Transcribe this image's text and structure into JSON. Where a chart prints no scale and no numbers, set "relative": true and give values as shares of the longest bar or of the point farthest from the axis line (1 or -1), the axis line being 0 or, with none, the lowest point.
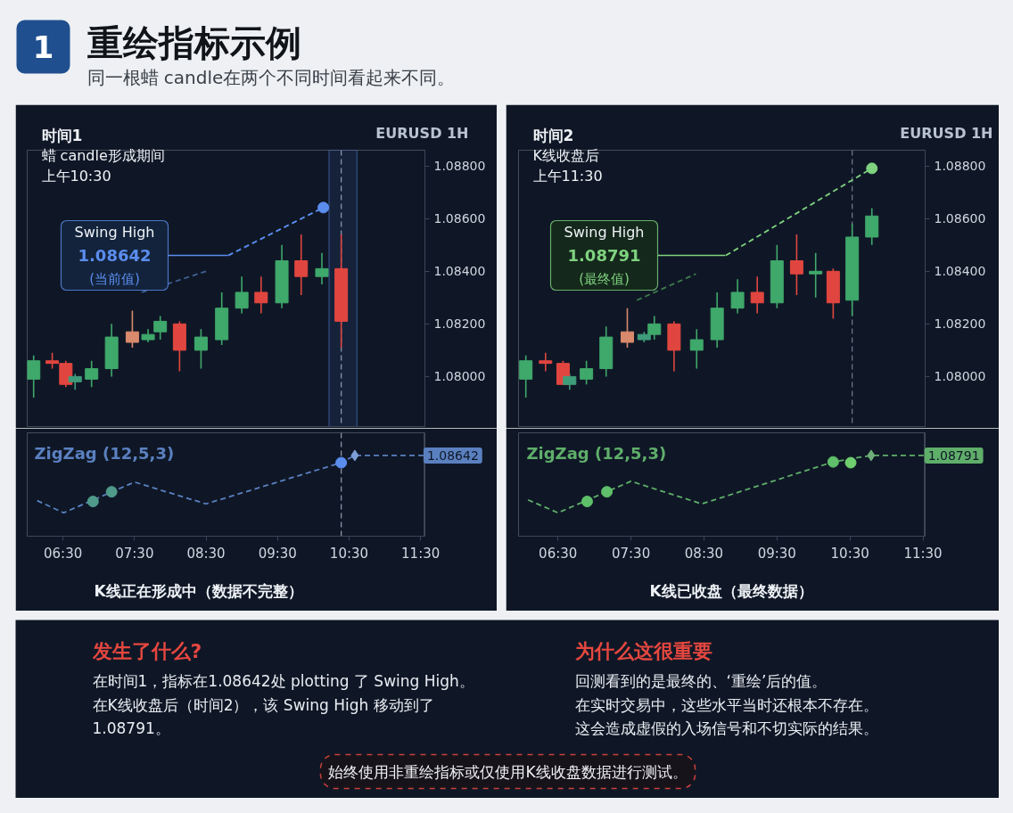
{
  "chart_data": [
    {
      "type": "other",
      "title": "重绘指标示例",
      "subtitle": "同一根蜡 candle在两个不同时间看起来不同。",
      "annotations": [
        "1"
      ]
    },
    {
      "type": "candlestick",
      "title": "时间1",
      "subtitle": "蜡 candle形成期间",
      "annotations": [
        "上午10:30",
        "EURUSD 1H",
        "Swing High\n1.08642\n(当前值)"
      ],
      "x": [
        6.09,
        6.35,
        6.54,
        6.67,
        6.9,
        7.18,
        7.47,
        7.69,
        7.86,
        8.13,
        8.43,
        8.72,
        9.0,
        9.27,
        9.56,
        9.83,
        10.12,
        10.39
      ],
      "ohlc": [
        [
          1.0799,
          1.0808,
          1.0792,
          1.0806
        ],
        [
          1.0806,
          1.0809,
          1.0803,
          1.0805
        ],
        [
          1.0805,
          1.0806,
          1.0796,
          1.0797
        ],
        [
          1.0798,
          1.0801,
          1.0795,
          1.08
        ],
        [
          1.0799,
          1.0806,
          1.0796,
          1.0803
        ],
        [
          1.0803,
          1.082,
          1.08,
          1.0815
        ],
        [
          1.0817,
          1.0825,
          1.0811,
          1.0813
        ],
        [
          1.0814,
          1.0818,
          1.0813,
          1.0816
        ],
        [
          1.0817,
          1.0823,
          1.0814,
          1.0821
        ],
        [
          1.082,
          1.0821,
          1.0802,
          1.081
        ],
        [
          1.081,
          1.0818,
          1.0803,
          1.0815
        ],
        [
          1.0814,
          1.0832,
          1.0812,
          1.0826
        ],
        [
          1.0826,
          1.0838,
          1.0824,
          1.0832
        ],
        [
          1.0832,
          1.0838,
          1.0824,
          1.0828
        ],
        [
          1.0828,
          1.085,
          1.0826,
          1.0844
        ],
        [
          1.0844,
          1.0854,
          1.0831,
          1.0838
        ],
        [
          1.0838,
          1.0847,
          1.0835,
          1.0841
        ],
        [
          1.0841,
          1.0854,
          1.0811,
          1.0821
        ]
      ],
      "colors": [
        "#3fa86b",
        "#e0463f",
        "#e0463f",
        "#3f9c7a",
        "#3fa86b",
        "#3fa86b",
        "#d98a6c",
        "#3fa86b",
        "#3fa86b",
        "#e0463f",
        "#3fa86b",
        "#3fa86b",
        "#3fa86b",
        "#e0463f",
        "#3fa86b",
        "#e0463f",
        "#3fa86b",
        "#e0463f"
      ],
      "series": [
        {
          "type": "scatter",
          "x": [
            10.14
          ],
          "values": [
            1.08642
          ],
          "color": "#5b8def",
          "marker": "circle"
        },
        {
          "type": "line",
          "x": [
            8.81,
            10.14
          ],
          "values": [
            1.0846,
            1.08642
          ],
          "color": "#5b8def",
          "line_style": "dashed"
        },
        {
          "type": "line",
          "x": [
            7.6,
            8.5
          ],
          "values": [
            1.0832,
            1.084
          ],
          "color": "#3e5f94",
          "line_style": "dashed"
        }
      ],
      "xlim": [
        6.0,
        11.56
      ],
      "ylim": [
        1.0781,
        1.0886
      ],
      "yticks": [
        {
          "value": 1.08,
          "label": "1.08000"
        },
        {
          "value": 1.082,
          "label": "1.08200"
        },
        {
          "value": 1.084,
          "label": "1.08400"
        },
        {
          "value": 1.086,
          "label": "1.08600"
        },
        {
          "value": 1.088,
          "label": "1.08800"
        }
      ],
      "tick_labels": "y",
      "ref_lines": [
        {
          "axis": "x",
          "value": 10.39,
          "color": "#8a94a6",
          "line_style": "dashed"
        }
      ],
      "bands": [
        {
          "axis": "x",
          "from": 10.22,
          "to": 10.61,
          "color": "#5b8def"
        }
      ]
    },
    {
      "type": "line",
      "title": "ZigZag (12,5,3)",
      "relative": true,
      "series": [
        {
          "x": [
            6.14,
            6.51,
            7.5,
            8.5,
            10.39,
            10.58,
            11.54
          ],
          "values": [
            0.44,
            0.29,
            0.67,
            0.4,
            0.91,
            1.0,
            1.0
          ],
          "color": "#5b80c0",
          "line_style": "dashed"
        },
        {
          "type": "scatter",
          "x": [
            6.92,
            7.18
          ],
          "values": [
            0.43,
            0.55
          ],
          "color": "#4f9a8a",
          "marker": "circle"
        },
        {
          "type": "scatter",
          "x": [
            10.39
          ],
          "values": [
            0.91
          ],
          "color": "#5b8def",
          "marker": "circle"
        },
        {
          "type": "scatter",
          "x": [
            10.58
          ],
          "values": [
            1.0
          ],
          "color": "#7d9fd6",
          "marker": "diamond"
        }
      ],
      "xlim": [
        6.0,
        11.56
      ],
      "xticks": [
        {
          "value": 6.5,
          "label": "06:30"
        },
        {
          "value": 7.5,
          "label": "07:30"
        },
        {
          "value": 8.5,
          "label": "08:30"
        },
        {
          "value": 9.5,
          "label": "09:30"
        },
        {
          "value": 10.5,
          "label": "10:30"
        },
        {
          "value": 11.5,
          "label": "11:30"
        }
      ],
      "tick_labels": "x",
      "ref_lines": [
        {
          "axis": "x",
          "value": 10.39,
          "color": "#8a94a6",
          "line_style": "dashed"
        },
        {
          "axis": "x",
          "value": 11.55,
          "color": "#3a4556",
          "line_style": "solid"
        }
      ],
      "annotations": [
        "K线正在形成中（数据不完整）",
        "1.08642"
      ]
    },
    {
      "type": "candlestick",
      "title": "时间2",
      "subtitle": "K线收盘后",
      "annotations": [
        "上午11:30",
        "EURUSD 1H",
        "Swing High\n1.08791\n(最终值)"
      ],
      "x": [
        6.06,
        6.33,
        6.57,
        6.66,
        6.89,
        7.16,
        7.45,
        7.68,
        7.82,
        8.09,
        8.4,
        8.68,
        8.96,
        9.23,
        9.5,
        9.77,
        10.03,
        10.27,
        10.53,
        10.8
      ],
      "ohlc": [
        [
          1.0799,
          1.0808,
          1.0792,
          1.0806
        ],
        [
          1.0806,
          1.0809,
          1.0802,
          1.0805
        ],
        [
          1.0805,
          1.0806,
          1.0797,
          1.0797
        ],
        [
          1.0797,
          1.0801,
          1.0795,
          1.08
        ],
        [
          1.0799,
          1.0806,
          1.0797,
          1.0803
        ],
        [
          1.0803,
          1.0819,
          1.08,
          1.0815
        ],
        [
          1.0817,
          1.0826,
          1.0811,
          1.0813
        ],
        [
          1.0814,
          1.0817,
          1.0813,
          1.0816
        ],
        [
          1.0816,
          1.0823,
          1.0814,
          1.082
        ],
        [
          1.082,
          1.0821,
          1.0802,
          1.081
        ],
        [
          1.081,
          1.0818,
          1.0803,
          1.0814
        ],
        [
          1.0814,
          1.0832,
          1.0811,
          1.0826
        ],
        [
          1.0826,
          1.0837,
          1.0824,
          1.0832
        ],
        [
          1.0832,
          1.0838,
          1.0824,
          1.0828
        ],
        [
          1.0828,
          1.085,
          1.0826,
          1.0844
        ],
        [
          1.0844,
          1.0854,
          1.0831,
          1.0839
        ],
        [
          1.0839,
          1.0847,
          1.083,
          1.084
        ],
        [
          1.084,
          1.0841,
          1.0822,
          1.0828
        ],
        [
          1.0829,
          1.0858,
          1.0823,
          1.0853
        ],
        [
          1.0853,
          1.0864,
          1.085,
          1.0861
        ]
      ],
      "colors": [
        "#3fa86b",
        "#e0463f",
        "#e0463f",
        "#3f9c7a",
        "#3fa86b",
        "#3fa86b",
        "#d98a6c",
        "#3f9c7a",
        "#3fa86b",
        "#e0463f",
        "#3fa86b",
        "#3fa86b",
        "#3fa86b",
        "#e0463f",
        "#3fa86b",
        "#e0463f",
        "#3fa86b",
        "#e0463f",
        "#3fa86b",
        "#3fa86b"
      ],
      "series": [
        {
          "type": "scatter",
          "x": [
            10.8
          ],
          "values": [
            1.08791
          ],
          "color": "#7fd27f",
          "marker": "circle"
        },
        {
          "type": "line",
          "x": [
            8.8,
            10.8
          ],
          "values": [
            1.0846,
            1.08791
          ],
          "color": "#7fd27f",
          "line_style": "dashed"
        },
        {
          "type": "line",
          "x": [
            7.58,
            8.39
          ],
          "values": [
            1.0829,
            1.0839
          ],
          "color": "#3f7a4f",
          "line_style": "dashed"
        }
      ],
      "xlim": [
        5.96,
        11.53
      ],
      "ylim": [
        1.0781,
        1.0886
      ],
      "yticks": [
        {
          "value": 1.08,
          "label": "1.08000"
        },
        {
          "value": 1.082,
          "label": "1.08200"
        },
        {
          "value": 1.084,
          "label": "1.08400"
        },
        {
          "value": 1.086,
          "label": "1.08600"
        },
        {
          "value": 1.088,
          "label": "1.08800"
        }
      ],
      "tick_labels": "y",
      "ref_lines": [
        {
          "axis": "x",
          "value": 10.53,
          "color": "#6b7687",
          "line_style": "dashed"
        }
      ]
    },
    {
      "type": "line",
      "title": "ZigZag (12,5,3)",
      "relative": true,
      "series": [
        {
          "x": [
            6.09,
            6.5,
            7.5,
            8.47,
            10.27,
            10.79,
            11.52
          ],
          "values": [
            0.45,
            0.29,
            0.68,
            0.4,
            0.92,
            1.0,
            1.0
          ],
          "color": "#5fae6a",
          "line_style": "dashed"
        },
        {
          "type": "scatter",
          "x": [
            6.9,
            7.17,
            10.27
          ],
          "values": [
            0.43,
            0.55,
            0.92
          ],
          "color": "#5fbf6a",
          "marker": "circle"
        },
        {
          "type": "scatter",
          "x": [
            10.51
          ],
          "values": [
            0.91
          ],
          "color": "#6fcf6f",
          "marker": "circle"
        },
        {
          "type": "scatter",
          "x": [
            10.79
          ],
          "values": [
            1.0
          ],
          "color": "#6fae7a",
          "marker": "diamond"
        }
      ],
      "xlim": [
        5.96,
        11.53
      ],
      "xticks": [
        {
          "value": 6.5,
          "label": "06:30"
        },
        {
          "value": 7.5,
          "label": "07:30"
        },
        {
          "value": 8.5,
          "label": "08:30"
        },
        {
          "value": 9.5,
          "label": "09:30"
        },
        {
          "value": 10.5,
          "label": "10:30"
        },
        {
          "value": 11.5,
          "label": "11:30"
        }
      ],
      "tick_labels": "x",
      "ref_lines": [
        {
          "axis": "x",
          "value": 11.52,
          "color": "#3a4556",
          "line_style": "solid"
        }
      ],
      "annotations": [
        "K线已收盘（最终数据）",
        "1.08791"
      ]
    },
    {
      "type": "other",
      "annotations": [
        "发生了什么?",
        "在时间1，指标在1.08642处 plotting 了 Swing High。",
        "在K线收盘后（时间2），该 Swing High 移动到了\n1.08791。",
        "为什么这很重要",
        "回测看到的是最终的、‘重绘’后的值。",
        "在实时交易中，这些水平当时还根本不存在。",
        "这会造成虚假的入场信号和不切实际的结果。",
        "始终使用非重绘指标或仅使用K线收盘数据进行测试。"
      ]
    }
  ]
}
